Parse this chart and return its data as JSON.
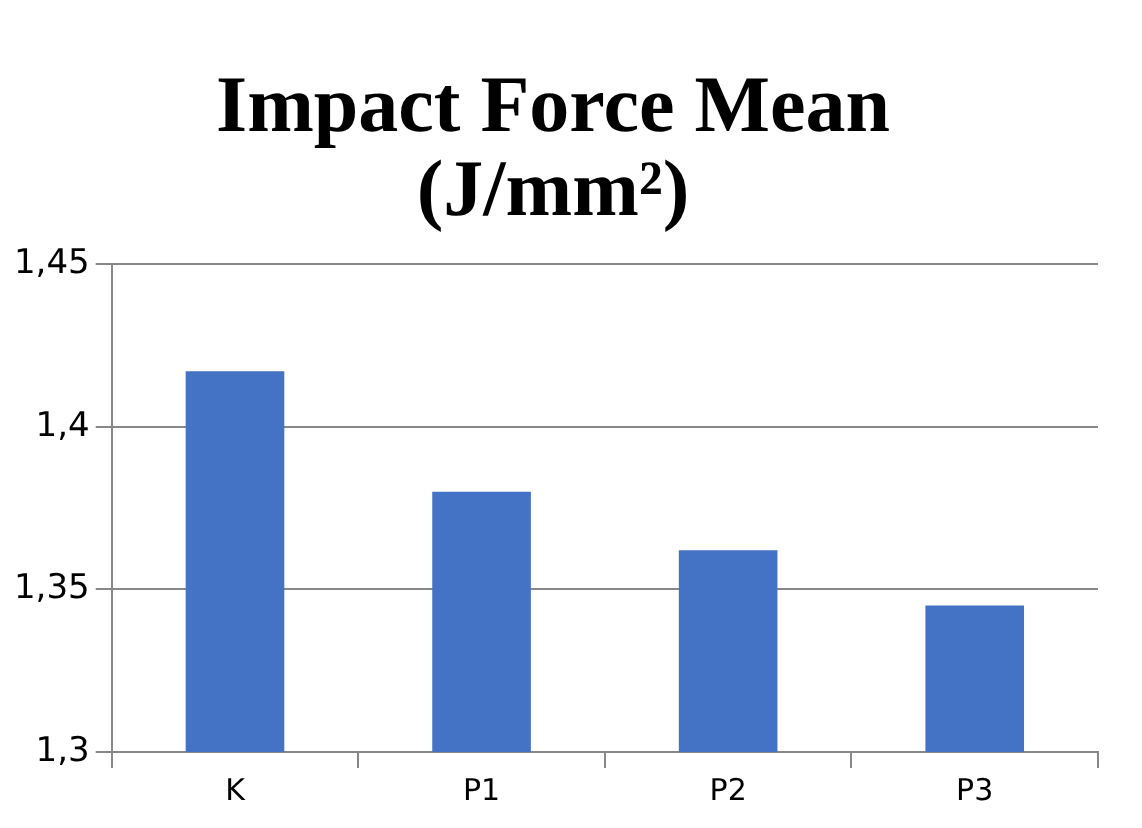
{
  "chart_data": {
    "type": "bar",
    "title": "Impact Force Mean\n(J/mm²)",
    "categories": [
      "K",
      "P1",
      "P2",
      "P3"
    ],
    "values": [
      1.417,
      1.38,
      1.362,
      1.345
    ],
    "color": "#4472c4",
    "ylim": [
      1.3,
      1.45
    ],
    "yticks": [
      {
        "value": 1.3,
        "label": "1,3"
      },
      {
        "value": 1.35,
        "label": "1,35"
      },
      {
        "value": 1.4,
        "label": "1,4"
      },
      {
        "value": 1.45,
        "label": "1,45"
      }
    ],
    "grid": "y",
    "legend": false
  }
}
